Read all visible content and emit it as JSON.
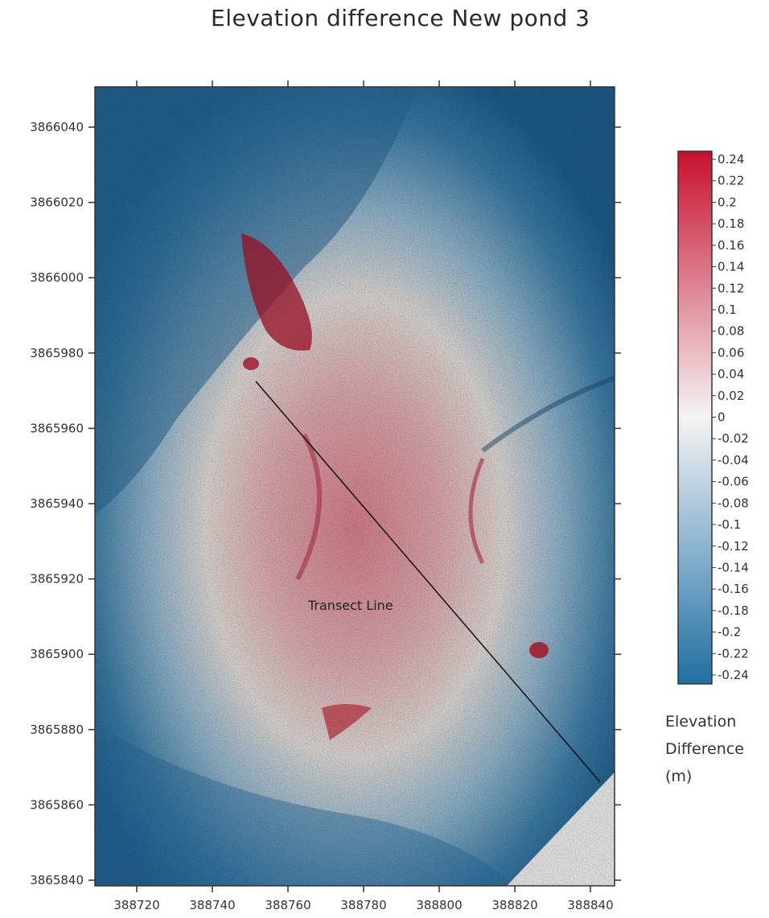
{
  "map": {
    "title": "Elevation difference New pond 3",
    "x_ticks": [
      "388720",
      "388740",
      "388760",
      "388780",
      "388800",
      "388820",
      "388840"
    ],
    "y_ticks": [
      "3866040",
      "3866020",
      "3866000",
      "3865980",
      "3865960",
      "3865940",
      "3865920",
      "3865900",
      "3865880",
      "3865860",
      "3865840"
    ],
    "annotation": "Transect Line",
    "colors": {
      "positive": "#c8102e",
      "zero": "#f4f4f4",
      "negative": "#1f6fa3"
    }
  },
  "colorbar": {
    "labels": [
      "0.24",
      "0.22",
      "0.2",
      "0.18",
      "0.16",
      "0.14",
      "0.12",
      "0.1",
      "0.08",
      "0.06",
      "0.04",
      "0.02",
      "0",
      "-0.02",
      "-0.04",
      "-0.06",
      "-0.08",
      "-0.1",
      "-0.12",
      "-0.14",
      "-0.16",
      "-0.18",
      "-0.2",
      "-0.22",
      "-0.24"
    ],
    "title_lines": [
      "Elevation",
      "Difference",
      "(m)"
    ]
  }
}
